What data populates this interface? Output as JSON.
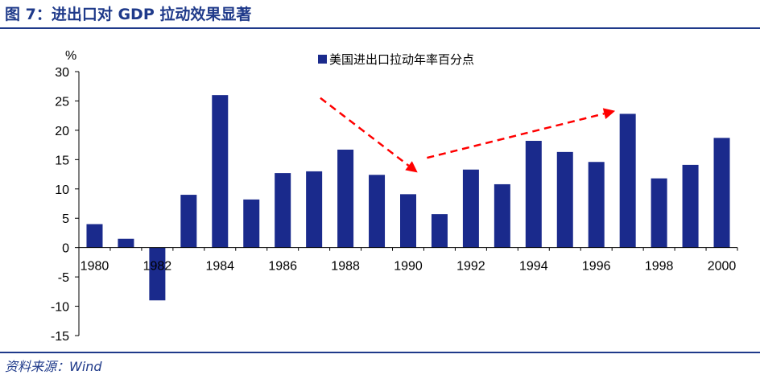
{
  "figure": {
    "title": "图 7：进出口对 GDP 拉动效果显著",
    "source": "资料来源：Wind"
  },
  "chart_data": {
    "type": "bar",
    "ylabel": "%",
    "ylim": [
      -15,
      30
    ],
    "yticks": [
      30,
      25,
      20,
      15,
      10,
      5,
      0,
      -5,
      -10,
      -15
    ],
    "x": [
      1980,
      1981,
      1982,
      1983,
      1984,
      1985,
      1986,
      1987,
      1988,
      1989,
      1990,
      1991,
      1992,
      1993,
      1994,
      1995,
      1996,
      1997,
      1998,
      1999,
      2000
    ],
    "xtick_labels": [
      "1980",
      "1982",
      "1984",
      "1986",
      "1988",
      "1990",
      "1992",
      "1994",
      "1996",
      "1998",
      "2000"
    ],
    "series": [
      {
        "name": "美国进出口拉动年率百分点",
        "color": "#1a2a8c",
        "values": [
          4.0,
          1.5,
          -9.0,
          9.0,
          26.0,
          8.2,
          12.7,
          13.0,
          16.7,
          12.4,
          9.1,
          5.7,
          13.3,
          10.8,
          18.2,
          16.3,
          14.6,
          22.8,
          11.8,
          14.1,
          18.7
        ]
      }
    ],
    "legend": "top",
    "grid": false,
    "annotations": [
      {
        "type": "arrow",
        "style": "dashed",
        "color": "#ff0000",
        "from": {
          "x": 1987.2,
          "y": 25.5
        },
        "to": {
          "x": 1990.3,
          "y": 12.8
        }
      },
      {
        "type": "arrow",
        "style": "dashed",
        "color": "#ff0000",
        "from": {
          "x": 1990.6,
          "y": 15.3
        },
        "to": {
          "x": 1996.6,
          "y": 23.3
        }
      }
    ]
  }
}
